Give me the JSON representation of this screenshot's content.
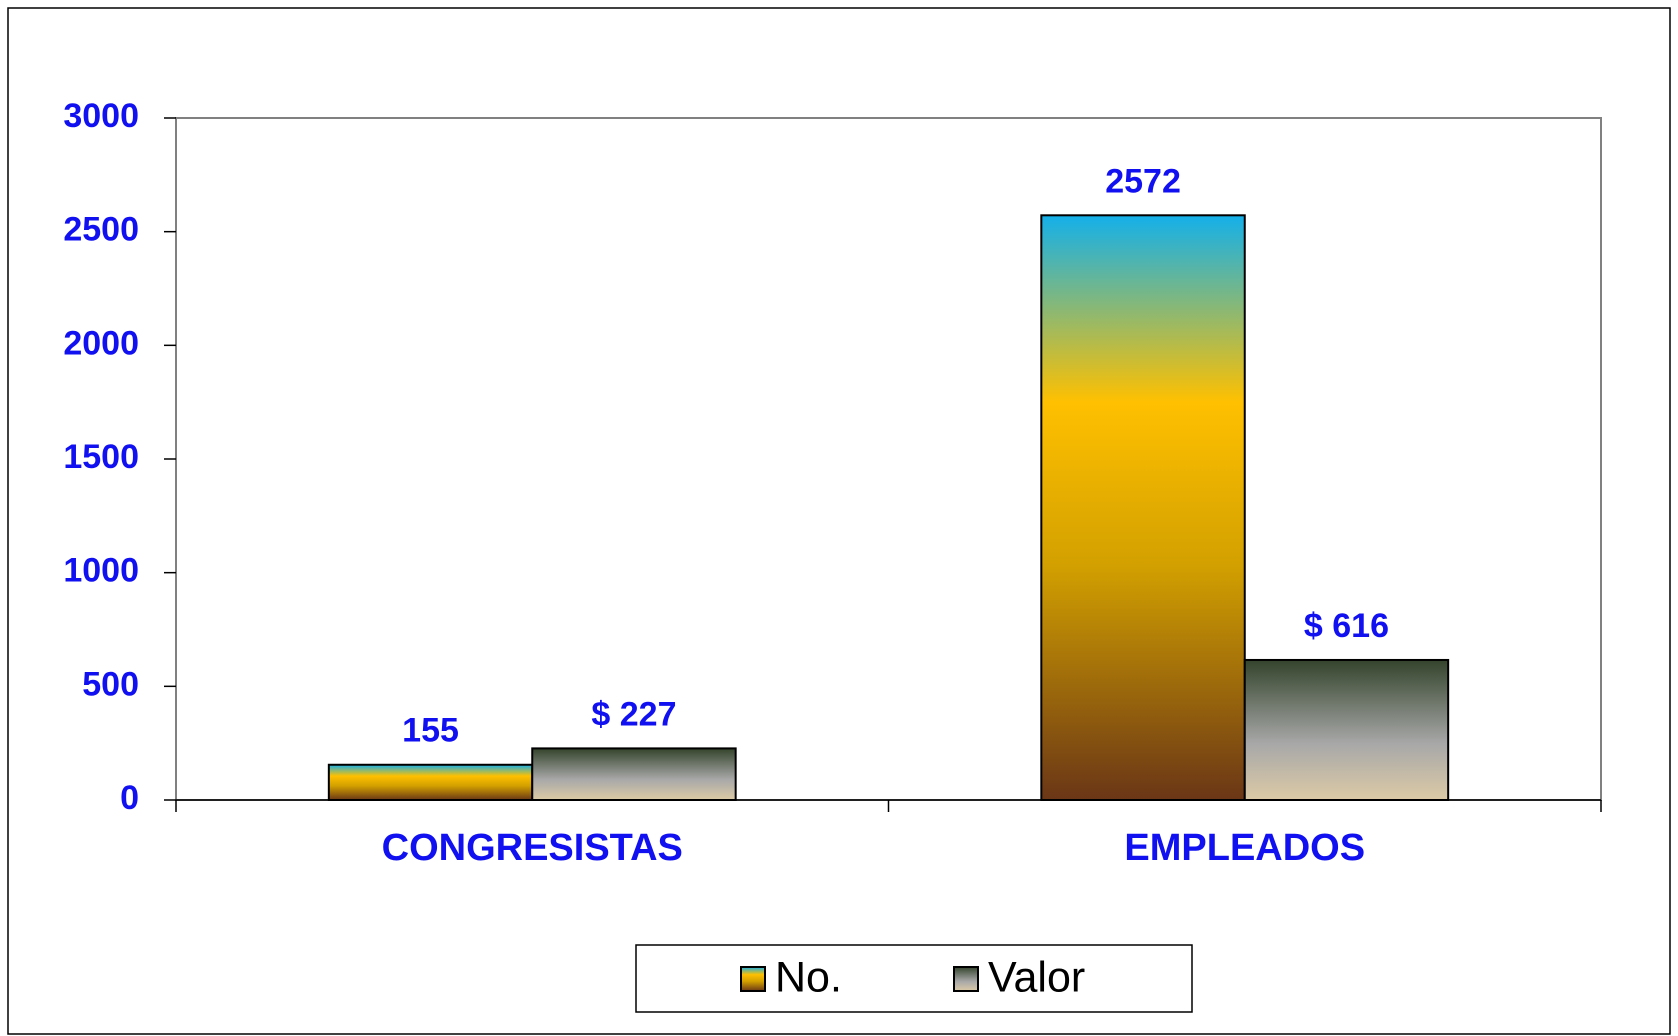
{
  "chart_data": {
    "type": "bar",
    "categories": [
      "CONGRESISTAS",
      "EMPLEADOS"
    ],
    "series": [
      {
        "name": "No.",
        "color": "#ffc000",
        "values": [
          155,
          2572
        ]
      },
      {
        "name": "Valor",
        "color": "#a8a8a8",
        "values": [
          227,
          616
        ],
        "value_labels": [
          "$ 227",
          "$ 616"
        ]
      }
    ],
    "ylim": [
      0,
      3000
    ],
    "yticks": [
      0,
      500,
      1000,
      1500,
      2000,
      2500,
      3000
    ],
    "grid": false,
    "legend": "bottom"
  }
}
